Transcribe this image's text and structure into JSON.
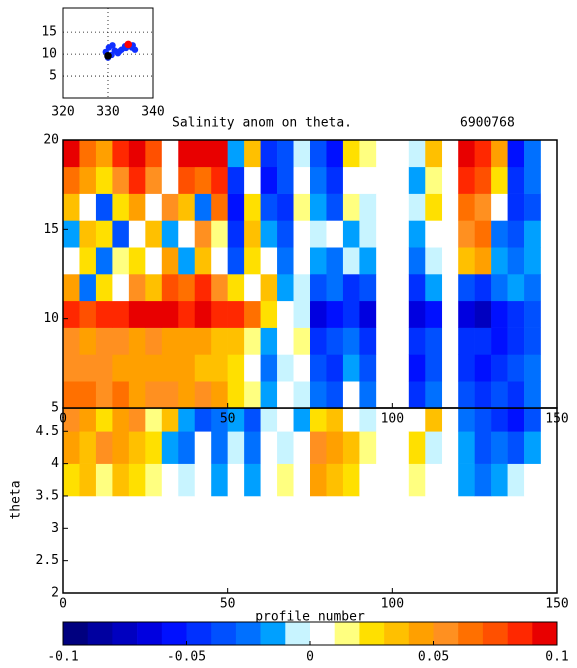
{
  "chart_data": [
    {
      "type": "scatter",
      "xlim": [
        320,
        340
      ],
      "ylim": [
        0,
        20.5
      ],
      "xticks": [
        320,
        330,
        340
      ],
      "yticks": [
        5,
        10,
        15
      ],
      "grid": true,
      "series": [
        {
          "color": "#1030ff",
          "x": [
            329.5,
            330.2,
            330.8,
            331.5,
            332.2,
            333.0,
            333.8,
            334.6,
            335.3,
            336.0,
            330.0,
            331.0,
            332.5,
            334.0,
            335.5
          ],
          "y": [
            10.5,
            11.5,
            9.8,
            10.8,
            10.2,
            11.0,
            11.8,
            12.2,
            11.5,
            11.0,
            9.2,
            12.0,
            10.6,
            11.4,
            12.0
          ]
        },
        {
          "color": "#ff0000",
          "x": [
            334.5
          ],
          "y": [
            12.2
          ]
        },
        {
          "color": "#000000",
          "x": [
            330.0
          ],
          "y": [
            9.6
          ]
        }
      ]
    },
    {
      "type": "contour",
      "title": "Salinity anom on theta.",
      "subtitle": "6900768",
      "xlim": [
        0,
        150
      ],
      "ylim": [
        5,
        20
      ],
      "xticks": [
        0,
        50,
        100,
        150
      ],
      "yticks": [
        5,
        10,
        15,
        20
      ],
      "x_edges": [
        0,
        5,
        10,
        15,
        20,
        25,
        30,
        35,
        40,
        45,
        50,
        55,
        60,
        65,
        70,
        75,
        80,
        85,
        90,
        95,
        100,
        105,
        110,
        115,
        120,
        125,
        130,
        135,
        140,
        145,
        150
      ],
      "y_edges": [
        5,
        6.5,
        8,
        9.5,
        11,
        12.5,
        14,
        15.5,
        17,
        18.5,
        20
      ],
      "z": [
        [
          0.06,
          0.06,
          0.05,
          0.06,
          0.04,
          0.05,
          0.05,
          0.04,
          0.05,
          0.04,
          0.02,
          0.01,
          -0.02,
          0.0,
          -0.01,
          -0.03,
          -0.04,
          0.0,
          -0.03,
          null,
          null,
          -0.05,
          -0.03,
          null,
          -0.04,
          -0.05,
          -0.04,
          -0.05,
          -0.03,
          null
        ],
        [
          0.05,
          0.05,
          0.05,
          0.04,
          0.04,
          0.04,
          0.04,
          0.04,
          0.03,
          0.03,
          0.02,
          0.0,
          -0.03,
          -0.01,
          0.0,
          -0.04,
          -0.05,
          -0.02,
          -0.04,
          null,
          null,
          -0.06,
          -0.04,
          null,
          -0.05,
          -0.06,
          -0.05,
          -0.04,
          -0.03,
          null
        ],
        [
          0.05,
          0.04,
          0.05,
          0.05,
          0.04,
          0.05,
          0.04,
          0.04,
          0.04,
          0.03,
          0.03,
          0.01,
          -0.02,
          0.0,
          0.01,
          -0.05,
          -0.04,
          -0.03,
          -0.05,
          null,
          null,
          -0.05,
          -0.04,
          null,
          -0.05,
          -0.05,
          -0.06,
          -0.05,
          -0.04,
          null
        ],
        [
          0.08,
          0.07,
          0.08,
          0.08,
          0.09,
          0.09,
          0.09,
          0.08,
          0.09,
          0.08,
          0.08,
          0.06,
          0.02,
          0.0,
          -0.01,
          -0.07,
          -0.06,
          -0.05,
          -0.07,
          null,
          null,
          -0.07,
          -0.06,
          null,
          -0.07,
          -0.08,
          -0.06,
          -0.05,
          -0.04,
          null
        ],
        [
          0.04,
          -0.03,
          0.02,
          0.0,
          0.05,
          0.03,
          0.07,
          0.06,
          0.08,
          0.05,
          0.02,
          0.0,
          0.03,
          -0.02,
          -0.01,
          -0.04,
          -0.03,
          -0.05,
          -0.04,
          null,
          null,
          -0.05,
          -0.02,
          null,
          -0.04,
          -0.05,
          -0.03,
          -0.02,
          -0.03,
          null
        ],
        [
          0.0,
          0.02,
          -0.03,
          0.01,
          0.02,
          0.0,
          0.04,
          -0.02,
          0.03,
          0.0,
          -0.04,
          0.02,
          0.0,
          -0.03,
          0.0,
          -0.02,
          -0.03,
          -0.01,
          -0.02,
          null,
          null,
          -0.03,
          -0.01,
          null,
          0.03,
          0.04,
          -0.02,
          -0.03,
          -0.02,
          null
        ],
        [
          -0.02,
          0.03,
          0.02,
          -0.04,
          0.0,
          0.03,
          -0.02,
          0.0,
          0.05,
          0.01,
          -0.05,
          0.03,
          -0.02,
          -0.04,
          0.0,
          -0.01,
          0.0,
          -0.02,
          -0.01,
          null,
          null,
          -0.02,
          0.0,
          null,
          0.05,
          0.06,
          -0.03,
          -0.04,
          -0.02,
          null
        ],
        [
          0.03,
          0.0,
          -0.04,
          0.02,
          0.04,
          0.0,
          0.05,
          0.03,
          -0.03,
          0.06,
          -0.06,
          0.02,
          -0.04,
          -0.05,
          0.01,
          -0.02,
          -0.04,
          0.01,
          -0.01,
          null,
          null,
          -0.01,
          0.02,
          null,
          0.06,
          0.05,
          0.0,
          -0.05,
          -0.04,
          null
        ],
        [
          0.06,
          0.04,
          0.02,
          0.05,
          0.08,
          0.05,
          0.0,
          0.07,
          0.06,
          0.08,
          -0.05,
          0.0,
          -0.06,
          -0.04,
          0.0,
          -0.03,
          -0.05,
          0.0,
          0.0,
          null,
          null,
          -0.02,
          0.01,
          null,
          0.08,
          0.07,
          0.02,
          -0.05,
          -0.03,
          null
        ],
        [
          0.09,
          0.06,
          0.04,
          0.08,
          0.09,
          0.07,
          0.0,
          0.09,
          0.1,
          0.09,
          -0.02,
          0.03,
          -0.05,
          -0.04,
          -0.01,
          -0.04,
          -0.06,
          0.02,
          0.01,
          null,
          null,
          -0.01,
          0.03,
          null,
          0.09,
          0.08,
          0.04,
          -0.06,
          -0.03,
          null
        ]
      ]
    },
    {
      "type": "contour",
      "xlabel": "profile number",
      "ylabel": "theta",
      "xlim": [
        0,
        150
      ],
      "ylim": [
        2,
        4.86
      ],
      "xticks": [
        0,
        50,
        100,
        150
      ],
      "yticks": [
        2,
        2.5,
        3,
        3.5,
        4,
        4.5
      ],
      "x_edges": [
        0,
        5,
        10,
        15,
        20,
        25,
        30,
        35,
        40,
        45,
        50,
        55,
        60,
        65,
        70,
        75,
        80,
        85,
        90,
        95,
        100,
        105,
        110,
        115,
        120,
        125,
        130,
        135,
        140,
        145,
        150
      ],
      "y_edges": [
        3.5,
        4,
        4.5,
        5
      ],
      "z": [
        [
          0.02,
          0.03,
          0.01,
          0.03,
          0.02,
          0.01,
          0.0,
          -0.01,
          0.0,
          -0.02,
          0.0,
          -0.02,
          0.0,
          0.01,
          0.0,
          0.04,
          0.03,
          0.02,
          0.0,
          null,
          null,
          0.01,
          0.0,
          null,
          -0.02,
          -0.03,
          -0.02,
          -0.01,
          0.0,
          null
        ],
        [
          0.04,
          0.03,
          0.05,
          0.04,
          0.03,
          0.02,
          -0.02,
          -0.03,
          0.0,
          -0.03,
          -0.01,
          -0.03,
          0.0,
          -0.01,
          0.0,
          0.05,
          0.04,
          0.03,
          0.01,
          null,
          null,
          0.02,
          -0.01,
          null,
          -0.02,
          -0.04,
          -0.03,
          -0.04,
          -0.02,
          null
        ],
        [
          0.05,
          0.04,
          0.02,
          0.04,
          0.05,
          0.01,
          0.03,
          -0.02,
          -0.04,
          -0.03,
          -0.02,
          -0.04,
          -0.01,
          0.0,
          -0.02,
          0.02,
          0.03,
          0.0,
          -0.01,
          null,
          null,
          0.0,
          0.03,
          null,
          -0.03,
          -0.04,
          -0.05,
          -0.06,
          -0.04,
          null
        ]
      ]
    },
    {
      "type": "colorbar",
      "clim": [
        -0.1,
        0.1
      ],
      "ticks": [
        -0.1,
        -0.05,
        0,
        0.05,
        0.1
      ],
      "colors": [
        "#00007f",
        "#0000a0",
        "#0000c0",
        "#0000e0",
        "#0010ff",
        "#0030ff",
        "#0050ff",
        "#0070ff",
        "#00a0ff",
        "#c8f4ff",
        "#ffffff",
        "#ffff80",
        "#ffe000",
        "#ffc000",
        "#ffa000",
        "#ff9020",
        "#ff7000",
        "#ff5000",
        "#ff2800",
        "#e80000"
      ]
    }
  ]
}
